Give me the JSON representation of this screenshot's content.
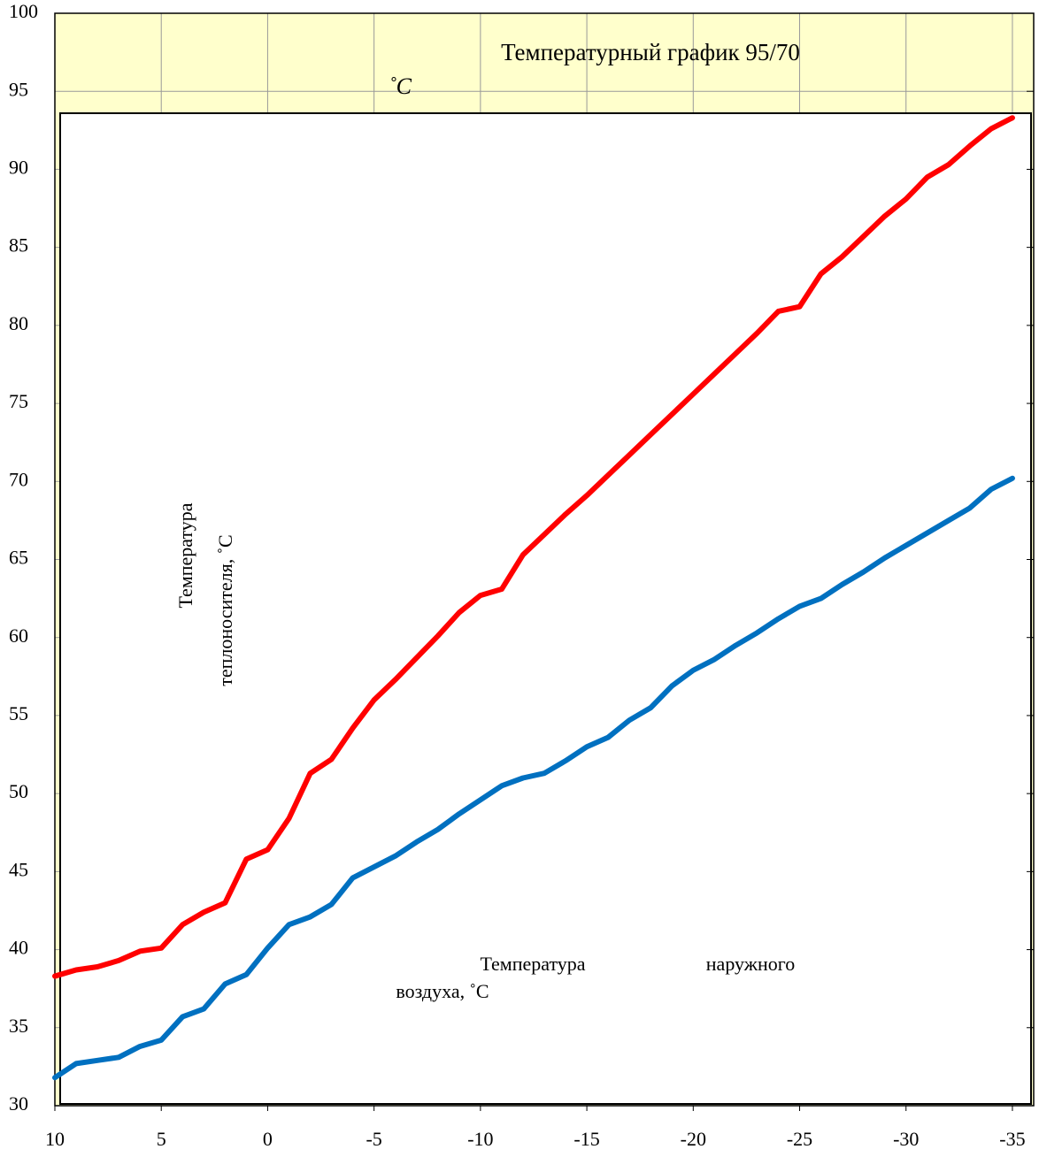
{
  "chart_data": {
    "type": "line",
    "title": "Температурный график 95/70",
    "unit_note": "˚C",
    "y_label": [
      "Температура",
      "теплоносителя, ˚C"
    ],
    "x_label": [
      "Температура",
      "наружного",
      "воздуха, ˚C"
    ],
    "x": [
      10,
      9,
      8,
      7,
      6,
      5,
      4,
      3,
      2,
      1,
      0,
      -1,
      -2,
      -3,
      -4,
      -5,
      -6,
      -7,
      -8,
      -9,
      -10,
      -11,
      -12,
      -13,
      -14,
      -15,
      -16,
      -17,
      -18,
      -19,
      -20,
      -21,
      -22,
      -23,
      -24,
      -25,
      -26,
      -27,
      -28,
      -29,
      -30,
      -31,
      -32,
      -33,
      -34,
      -35
    ],
    "series": [
      {
        "color": "#ff0000",
        "values": [
          38.3,
          38.7,
          38.9,
          39.3,
          39.9,
          40.1,
          41.6,
          42.4,
          43.0,
          45.8,
          46.4,
          48.4,
          51.3,
          52.2,
          54.2,
          56.0,
          57.3,
          58.7,
          60.1,
          61.6,
          62.7,
          63.1,
          65.3,
          66.6,
          67.9,
          69.1,
          70.4,
          71.7,
          73.0,
          74.3,
          75.6,
          76.9,
          78.2,
          79.5,
          80.9,
          81.2,
          83.3,
          84.4,
          85.7,
          87.0,
          88.1,
          89.5,
          90.3,
          91.5,
          92.6,
          93.3
        ]
      },
      {
        "color": "#0070c0",
        "values": [
          31.8,
          32.7,
          32.9,
          33.1,
          33.8,
          34.2,
          35.7,
          36.2,
          37.8,
          38.4,
          40.1,
          41.6,
          42.1,
          42.9,
          44.6,
          45.3,
          46.0,
          46.9,
          47.7,
          48.7,
          49.6,
          50.5,
          51.0,
          51.3,
          52.1,
          53.0,
          53.6,
          54.7,
          55.5,
          56.9,
          57.9,
          58.6,
          59.5,
          60.3,
          61.2,
          62.0,
          62.5,
          63.4,
          64.2,
          65.1,
          65.9,
          66.7,
          67.5,
          68.3,
          69.5,
          70.2
        ]
      }
    ],
    "xlim": [
      10,
      -36
    ],
    "xticks": [
      10,
      5,
      0,
      -5,
      -10,
      -15,
      -20,
      -25,
      -30,
      -35
    ],
    "ylim": [
      30,
      100
    ],
    "yticks": [
      30,
      35,
      40,
      45,
      50,
      55,
      60,
      65,
      70,
      75,
      80,
      85,
      90,
      95,
      100
    ],
    "grid": true
  }
}
